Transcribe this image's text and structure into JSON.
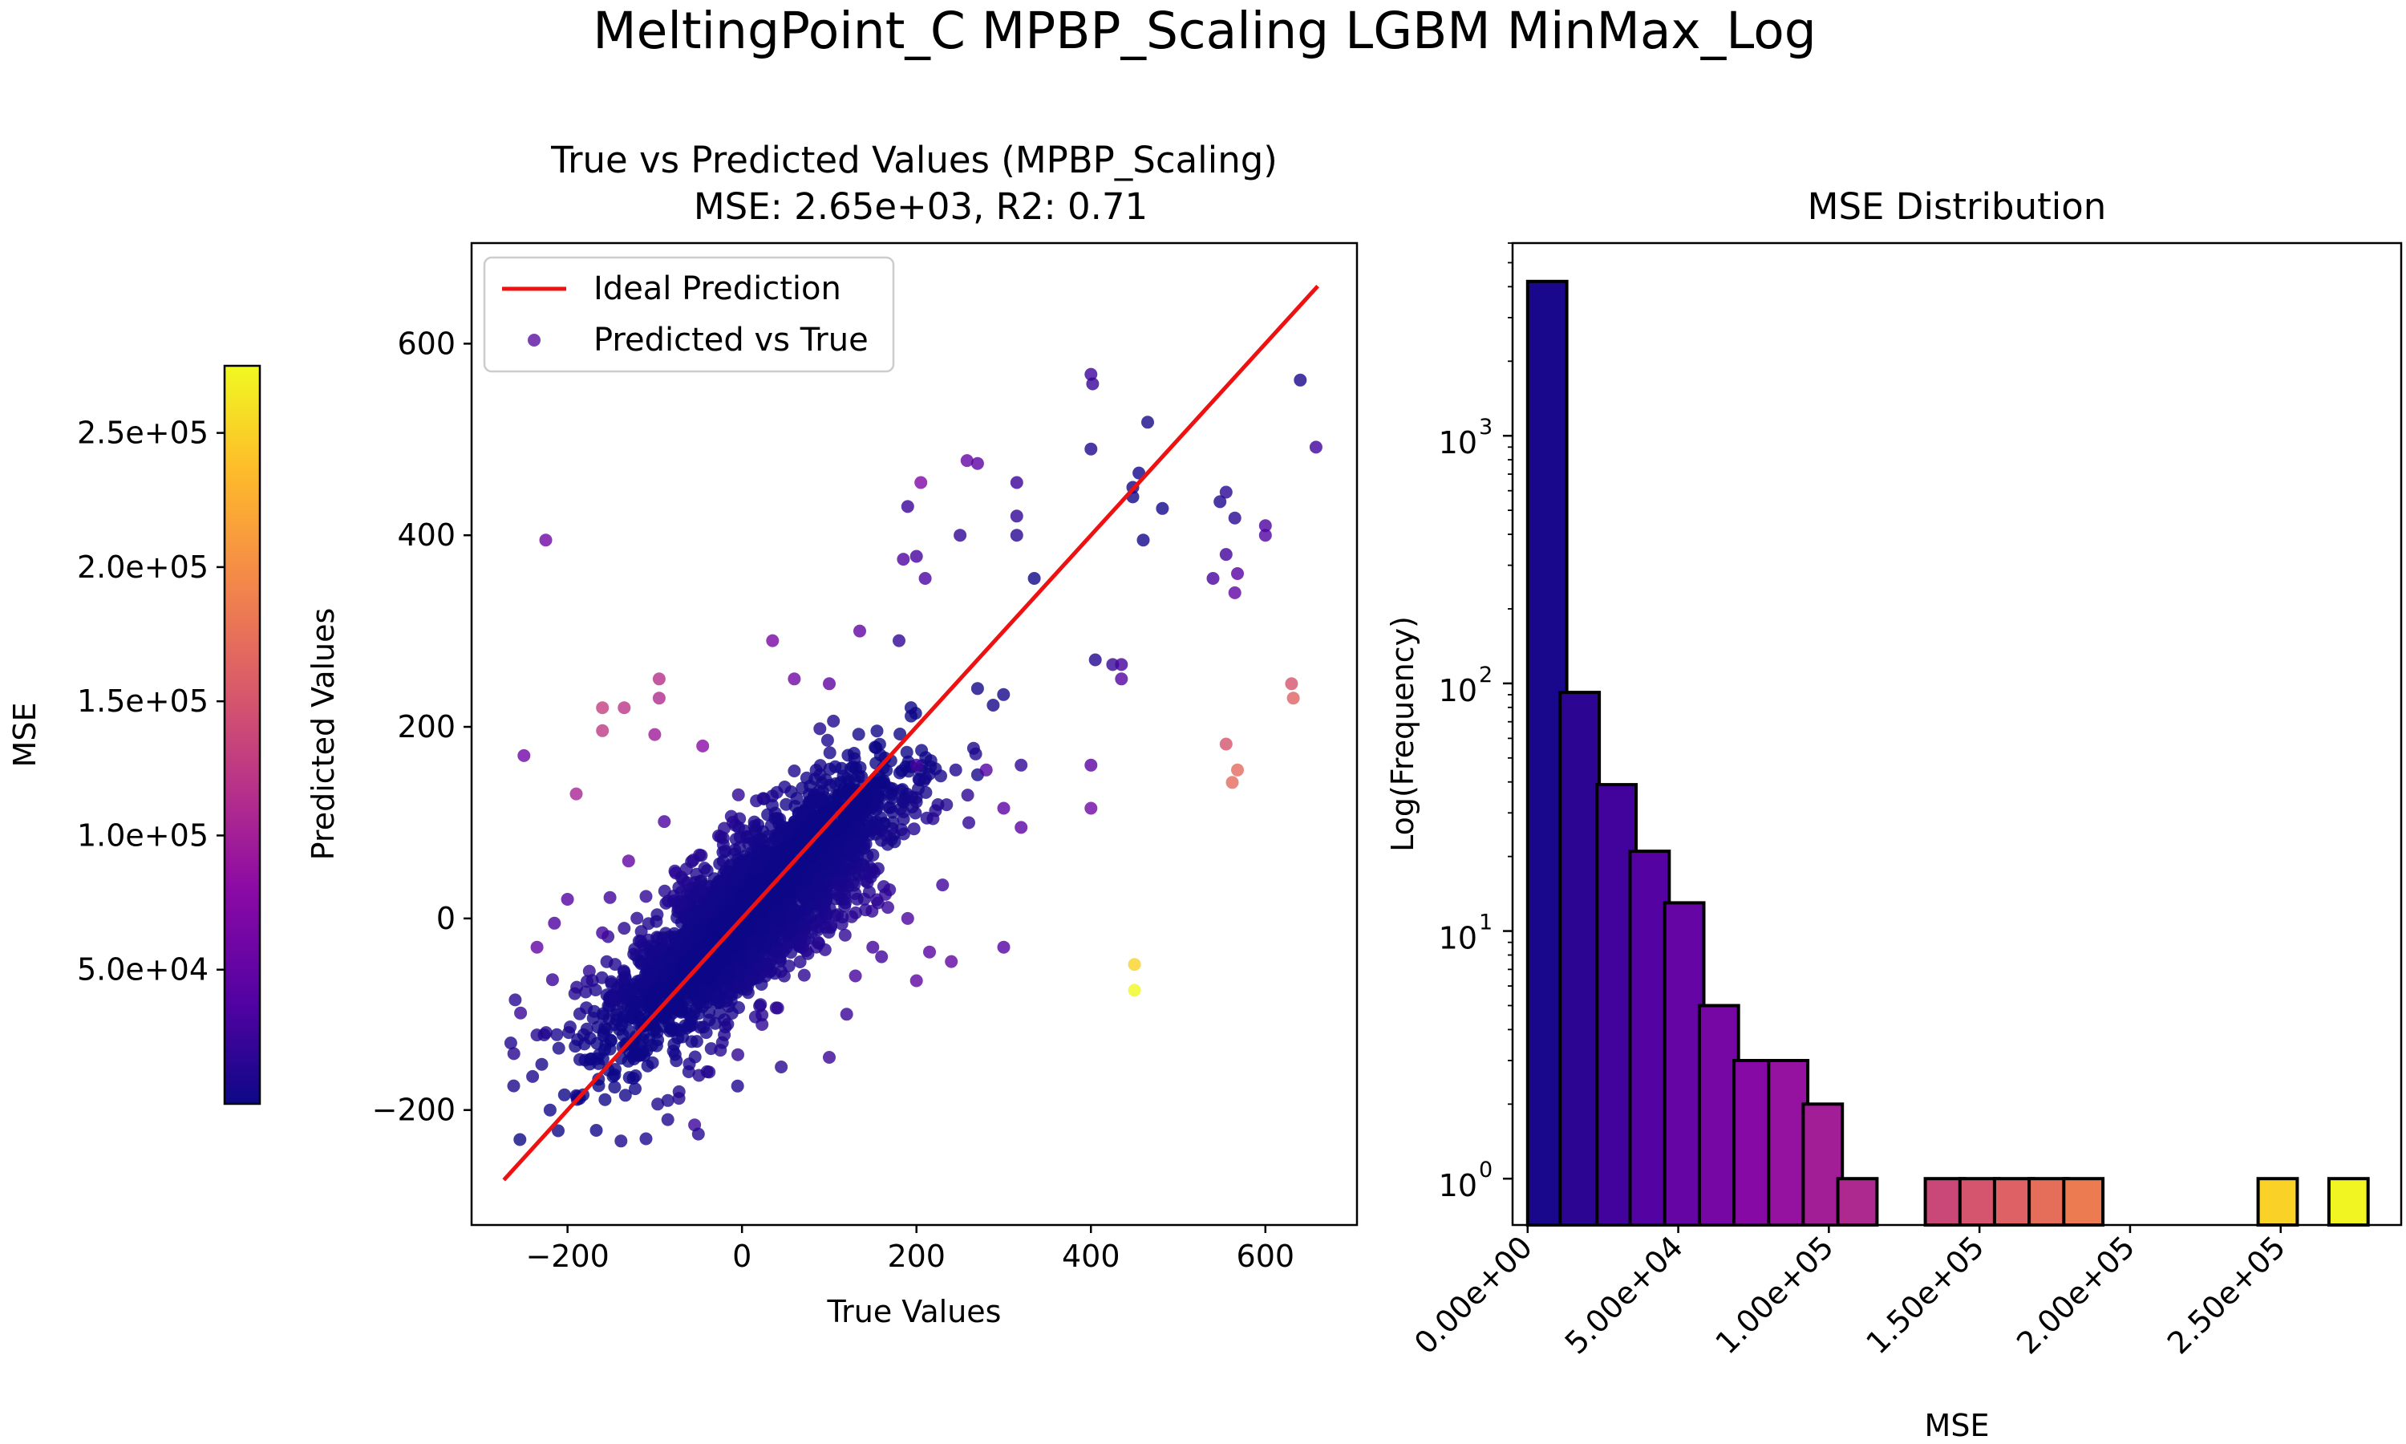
{
  "suptitle": "MeltingPoint_C MPBP_Scaling LGBM MinMax_Log",
  "colors": {
    "ideal_line": "#ee1111",
    "colormap": [
      "#0d0887",
      "#5302a3",
      "#8b0aa5",
      "#b83289",
      "#db5c68",
      "#f48849",
      "#febc2a",
      "#f0f921"
    ]
  },
  "colorbar": {
    "label": "MSE",
    "range": [
      0,
      275000
    ],
    "ticks": [
      50000,
      100000,
      150000,
      200000,
      250000
    ],
    "tick_labels": [
      "5.0e+04",
      "1.0e+05",
      "1.5e+05",
      "2.0e+05",
      "2.5e+05"
    ]
  },
  "chart_data": [
    {
      "type": "scatter",
      "title_line1": "True vs Predicted Values (MPBP_Scaling)",
      "title_line2": "MSE: 2.65e+03, R2: 0.71",
      "xlabel": "True Values",
      "ylabel": "Predicted Values",
      "xlim": [
        -310,
        705
      ],
      "ylim": [
        -320,
        705
      ],
      "xticks": [
        -200,
        0,
        200,
        400,
        600
      ],
      "xtick_labels": [
        "−200",
        "0",
        "200",
        "400",
        "600"
      ],
      "yticks": [
        -200,
        0,
        200,
        400,
        600
      ],
      "ytick_labels": [
        "−200",
        "0",
        "200",
        "400",
        "600"
      ],
      "legend": {
        "position": "upper-left",
        "line_label": "Ideal Prediction",
        "points_label": "Predicted vs True"
      },
      "ideal_line": {
        "x": [
          -273,
          660
        ],
        "y": [
          -273,
          660
        ]
      },
      "outliers": [
        [
          400,
          568,
          28000
        ],
        [
          402,
          558,
          24000
        ],
        [
          465,
          518,
          5000
        ],
        [
          400,
          490,
          12000
        ],
        [
          455,
          465,
          3000
        ],
        [
          448,
          450,
          1000
        ],
        [
          448,
          440,
          2000
        ],
        [
          482,
          428,
          3000
        ],
        [
          460,
          395,
          4000
        ],
        [
          548,
          435,
          8000
        ],
        [
          555,
          445,
          16000
        ],
        [
          565,
          418,
          15000
        ],
        [
          555,
          380,
          30000
        ],
        [
          568,
          360,
          42000
        ],
        [
          540,
          355,
          34000
        ],
        [
          565,
          340,
          50000
        ],
        [
          600,
          410,
          36000
        ],
        [
          600,
          400,
          38000
        ],
        [
          640,
          562,
          6000
        ],
        [
          658,
          492,
          28000
        ],
        [
          630,
          245,
          150000
        ],
        [
          632,
          230,
          162000
        ],
        [
          555,
          182,
          150000
        ],
        [
          568,
          155,
          170000
        ],
        [
          562,
          142,
          170000
        ],
        [
          450,
          -48,
          250000
        ],
        [
          450,
          -75,
          275000
        ],
        [
          405,
          270,
          12000
        ],
        [
          425,
          265,
          22000
        ],
        [
          435,
          265,
          32000
        ],
        [
          435,
          250,
          40000
        ],
        [
          400,
          160,
          45000
        ],
        [
          400,
          115,
          60000
        ],
        [
          258,
          478,
          52000
        ],
        [
          270,
          475,
          44000
        ],
        [
          315,
          455,
          25000
        ],
        [
          315,
          420,
          20000
        ],
        [
          315,
          400,
          15000
        ],
        [
          250,
          400,
          20000
        ],
        [
          205,
          455,
          70000
        ],
        [
          185,
          375,
          38000
        ],
        [
          200,
          378,
          32000
        ],
        [
          335,
          355,
          1000
        ],
        [
          -190,
          130,
          104000
        ],
        [
          -160,
          220,
          130000
        ],
        [
          -160,
          196,
          125000
        ],
        [
          -95,
          250,
          115000
        ],
        [
          -95,
          230,
          110000
        ],
        [
          -100,
          192,
          95000
        ],
        [
          -45,
          180,
          78000
        ],
        [
          -135,
          220,
          120000
        ],
        [
          -250,
          170,
          60000
        ],
        [
          -225,
          395,
          60000
        ],
        [
          135,
          300,
          50000
        ],
        [
          35,
          290,
          65000
        ],
        [
          60,
          250,
          60000
        ],
        [
          100,
          245,
          48000
        ],
        [
          180,
          290,
          20000
        ],
        [
          270,
          240,
          3000
        ],
        [
          190,
          430,
          25000
        ],
        [
          210,
          355,
          35000
        ],
        [
          245,
          155,
          10000
        ],
        [
          270,
          150,
          5000
        ],
        [
          200,
          160,
          30000
        ],
        [
          -175,
          -55,
          18000
        ],
        [
          -235,
          -30,
          50000
        ],
        [
          -265,
          -130,
          10000
        ],
        [
          -240,
          -165,
          8000
        ],
        [
          -220,
          -200,
          3000
        ],
        [
          -190,
          -185,
          4000
        ],
        [
          -85,
          -190,
          8000
        ],
        [
          -85,
          -210,
          10000
        ],
        [
          -40,
          -160,
          12000
        ],
        [
          -5,
          -175,
          10000
        ],
        [
          45,
          -155,
          15000
        ],
        [
          100,
          -145,
          25000
        ],
        [
          130,
          -60,
          32000
        ],
        [
          160,
          -40,
          30000
        ],
        [
          200,
          -65,
          48000
        ],
        [
          240,
          -45,
          50000
        ],
        [
          300,
          -30,
          40000
        ],
        [
          280,
          155,
          40000
        ],
        [
          300,
          115,
          45000
        ],
        [
          320,
          95,
          45000
        ],
        [
          215,
          -35,
          42000
        ],
        [
          190,
          0,
          35000
        ],
        [
          175,
          80,
          2000
        ],
        [
          -130,
          60,
          50000
        ],
        [
          -160,
          -15,
          30000
        ],
        [
          -200,
          20,
          40000
        ],
        [
          -215,
          -5,
          36000
        ],
        [
          -260,
          -85,
          15000
        ],
        [
          -145,
          -85,
          5000
        ],
        [
          -110,
          -230,
          8000
        ],
        [
          -50,
          -225,
          14000
        ],
        [
          150,
          -30,
          30000
        ],
        [
          120,
          -100,
          25000
        ],
        [
          260,
          100,
          18000
        ],
        [
          320,
          160,
          20000
        ],
        [
          230,
          35,
          28000
        ]
      ],
      "main_cluster": {
        "count": 2900,
        "slope": 0.72,
        "x_mean": 10,
        "x_sd": 78,
        "noise_sd": 42
      }
    },
    {
      "type": "bar",
      "title": "MSE Distribution",
      "xlabel": "MSE",
      "ylabel": "Log(Frequency)",
      "yscale": "log",
      "bin_width": 13000,
      "xlim": [
        -5000,
        290000
      ],
      "ylim": [
        0.65,
        6000
      ],
      "xticks": [
        0,
        50000,
        100000,
        150000,
        200000,
        250000
      ],
      "xtick_labels": [
        "0.00e+00",
        "5.00e+04",
        "1.00e+05",
        "1.50e+05",
        "2.00e+05",
        "2.50e+05"
      ],
      "yticks": [
        1,
        10,
        100,
        1000
      ],
      "ytick_labels": [
        "10",
        "10",
        "10",
        "10"
      ],
      "ytick_exponents": [
        "0",
        "1",
        "2",
        "3"
      ],
      "bins": [
        {
          "start": 0,
          "count": 4200
        },
        {
          "start": 10800,
          "count": 92
        },
        {
          "start": 23000,
          "count": 39
        },
        {
          "start": 34000,
          "count": 21
        },
        {
          "start": 45500,
          "count": 13
        },
        {
          "start": 57000,
          "count": 5
        },
        {
          "start": 68500,
          "count": 3
        },
        {
          "start": 80000,
          "count": 3
        },
        {
          "start": 91500,
          "count": 2
        },
        {
          "start": 103000,
          "count": 1
        },
        {
          "start": 132000,
          "count": 1
        },
        {
          "start": 143500,
          "count": 1
        },
        {
          "start": 155000,
          "count": 1
        },
        {
          "start": 166500,
          "count": 1
        },
        {
          "start": 178000,
          "count": 1
        },
        {
          "start": 242500,
          "count": 1
        },
        {
          "start": 266000,
          "count": 1
        }
      ]
    }
  ]
}
